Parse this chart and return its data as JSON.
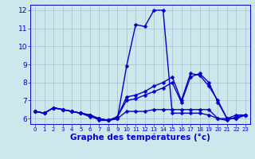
{
  "title": "Graphe des températures (°c)",
  "bg_color": "#cce8ec",
  "line_color": "#0000cc",
  "grid_color": "#aabccc",
  "xlim": [
    -0.5,
    23.5
  ],
  "ylim": [
    5.7,
    12.3
  ],
  "xticks": [
    0,
    1,
    2,
    3,
    4,
    5,
    6,
    7,
    8,
    9,
    10,
    11,
    12,
    13,
    14,
    15,
    16,
    17,
    18,
    19,
    20,
    21,
    22,
    23
  ],
  "yticks": [
    6,
    7,
    8,
    9,
    10,
    11,
    12
  ],
  "series": [
    {
      "x": [
        0,
        1,
        2,
        3,
        4,
        5,
        6,
        7,
        8,
        9,
        10,
        11,
        12,
        13,
        14,
        15,
        16,
        17,
        18,
        19,
        20,
        21,
        22,
        23
      ],
      "y": [
        6.4,
        6.3,
        6.6,
        6.5,
        6.4,
        6.3,
        6.2,
        5.9,
        5.9,
        6.0,
        8.9,
        11.2,
        11.1,
        12.0,
        12.0,
        6.3,
        6.3,
        6.3,
        6.3,
        6.2,
        6.0,
        6.0,
        6.2,
        6.2
      ]
    },
    {
      "x": [
        0,
        1,
        2,
        3,
        4,
        5,
        6,
        7,
        8,
        9,
        10,
        11,
        12,
        13,
        14,
        15,
        16,
        17,
        18,
        19,
        20,
        21,
        22,
        23
      ],
      "y": [
        6.4,
        6.3,
        6.6,
        6.5,
        6.4,
        6.3,
        6.2,
        6.0,
        5.9,
        6.1,
        7.0,
        7.1,
        7.3,
        7.5,
        7.7,
        8.0,
        6.9,
        8.3,
        8.5,
        8.0,
        6.9,
        6.0,
        6.0,
        6.2
      ]
    },
    {
      "x": [
        0,
        1,
        2,
        3,
        4,
        5,
        6,
        7,
        8,
        9,
        10,
        11,
        12,
        13,
        14,
        15,
        16,
        17,
        18,
        19,
        20,
        21,
        22,
        23
      ],
      "y": [
        6.4,
        6.3,
        6.6,
        6.5,
        6.4,
        6.3,
        6.2,
        6.0,
        5.9,
        6.1,
        7.2,
        7.3,
        7.5,
        7.8,
        8.0,
        8.3,
        7.0,
        8.5,
        8.4,
        7.8,
        7.0,
        6.0,
        6.0,
        6.2
      ]
    },
    {
      "x": [
        0,
        1,
        2,
        3,
        4,
        5,
        6,
        7,
        8,
        9,
        10,
        11,
        12,
        13,
        14,
        15,
        16,
        17,
        18,
        19,
        20,
        21,
        22,
        23
      ],
      "y": [
        6.4,
        6.3,
        6.6,
        6.5,
        6.4,
        6.3,
        6.1,
        6.0,
        5.9,
        6.0,
        6.4,
        6.4,
        6.4,
        6.5,
        6.5,
        6.5,
        6.5,
        6.5,
        6.5,
        6.5,
        6.0,
        5.9,
        6.1,
        6.2
      ]
    }
  ],
  "markersize": 2.5,
  "linewidth": 1.0,
  "tick_fontsize": 5.8,
  "xlabel_fontsize": 7.5
}
